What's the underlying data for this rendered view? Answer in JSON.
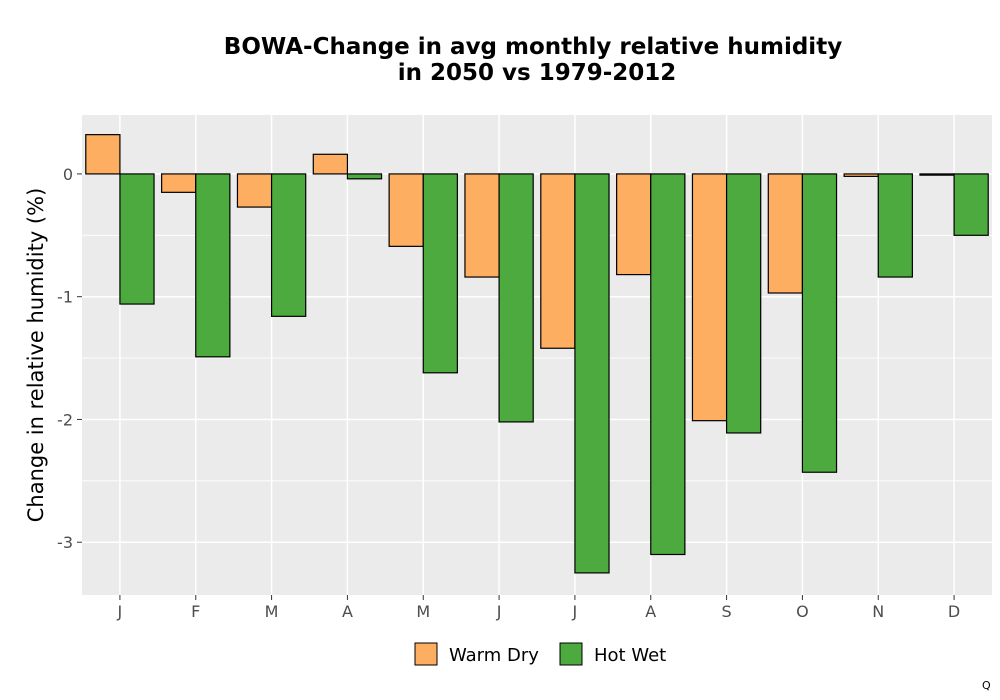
{
  "chart_data": {
    "type": "bar",
    "title_lines": [
      "BOWA-Change in avg monthly relative humidity",
      "in 2050 vs 1979-2012"
    ],
    "xlabel": "",
    "ylabel": "Change in relative humidity (%)",
    "categories": [
      "J",
      "F",
      "M",
      "A",
      "M",
      "J",
      "J",
      "A",
      "S",
      "O",
      "N",
      "D"
    ],
    "series": [
      {
        "name": "Warm Dry",
        "color": "#FDAE61",
        "values": [
          0.32,
          -0.15,
          -0.27,
          0.16,
          -0.59,
          -0.84,
          -1.42,
          -0.82,
          -2.01,
          -0.97,
          -0.02,
          -0.01
        ]
      },
      {
        "name": "Hot Wet",
        "color": "#4DAA3F",
        "values": [
          -1.06,
          -1.49,
          -1.16,
          -0.04,
          -1.62,
          -2.02,
          -3.25,
          -3.1,
          -2.11,
          -2.43,
          -0.84,
          -0.5
        ]
      }
    ],
    "ylim": [
      -3.43,
      0.48
    ],
    "y_ticks": [
      0,
      -1,
      -2,
      -3
    ],
    "y_tick_labels": [
      "0",
      "-1",
      "-2",
      "-3"
    ],
    "grid": true,
    "legend_position": "bottom",
    "panel_background": "#EBEBEB",
    "grid_color": "#FFFFFF",
    "bar_outline": "#000000"
  },
  "corner_mark": "Q"
}
